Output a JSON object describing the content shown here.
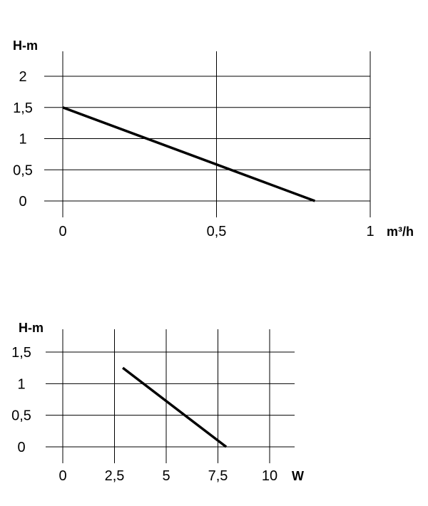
{
  "chart_data": [
    {
      "type": "line",
      "title": "",
      "ylabel": "H-m",
      "xlabel": "m³/h",
      "xlim": [
        0,
        1
      ],
      "ylim": [
        0,
        2
      ],
      "x_ticks": [
        0,
        0.5,
        1
      ],
      "x_tick_labels": [
        "0",
        "0,5",
        "1"
      ],
      "y_ticks": [
        0,
        0.5,
        1,
        1.5,
        2
      ],
      "y_tick_labels": [
        "0",
        "0,5",
        "1",
        "1,5",
        "2"
      ],
      "grid": true,
      "series": [
        {
          "x": [
            0,
            0.82
          ],
          "y": [
            1.5,
            0
          ]
        }
      ]
    },
    {
      "type": "line",
      "title": "",
      "ylabel": "H-m",
      "xlabel": "W",
      "xlim": [
        0,
        10
      ],
      "ylim": [
        0,
        1.5
      ],
      "x_ticks": [
        0,
        2.5,
        5,
        7.5,
        10
      ],
      "x_tick_labels": [
        "0",
        "2,5",
        "5",
        "7,5",
        "10"
      ],
      "y_ticks": [
        0,
        0.5,
        1,
        1.5
      ],
      "y_tick_labels": [
        "0",
        "0,5",
        "1",
        "1,5"
      ],
      "grid": true,
      "series": [
        {
          "x": [
            2.9,
            7.9
          ],
          "y": [
            1.25,
            0
          ]
        }
      ]
    }
  ]
}
